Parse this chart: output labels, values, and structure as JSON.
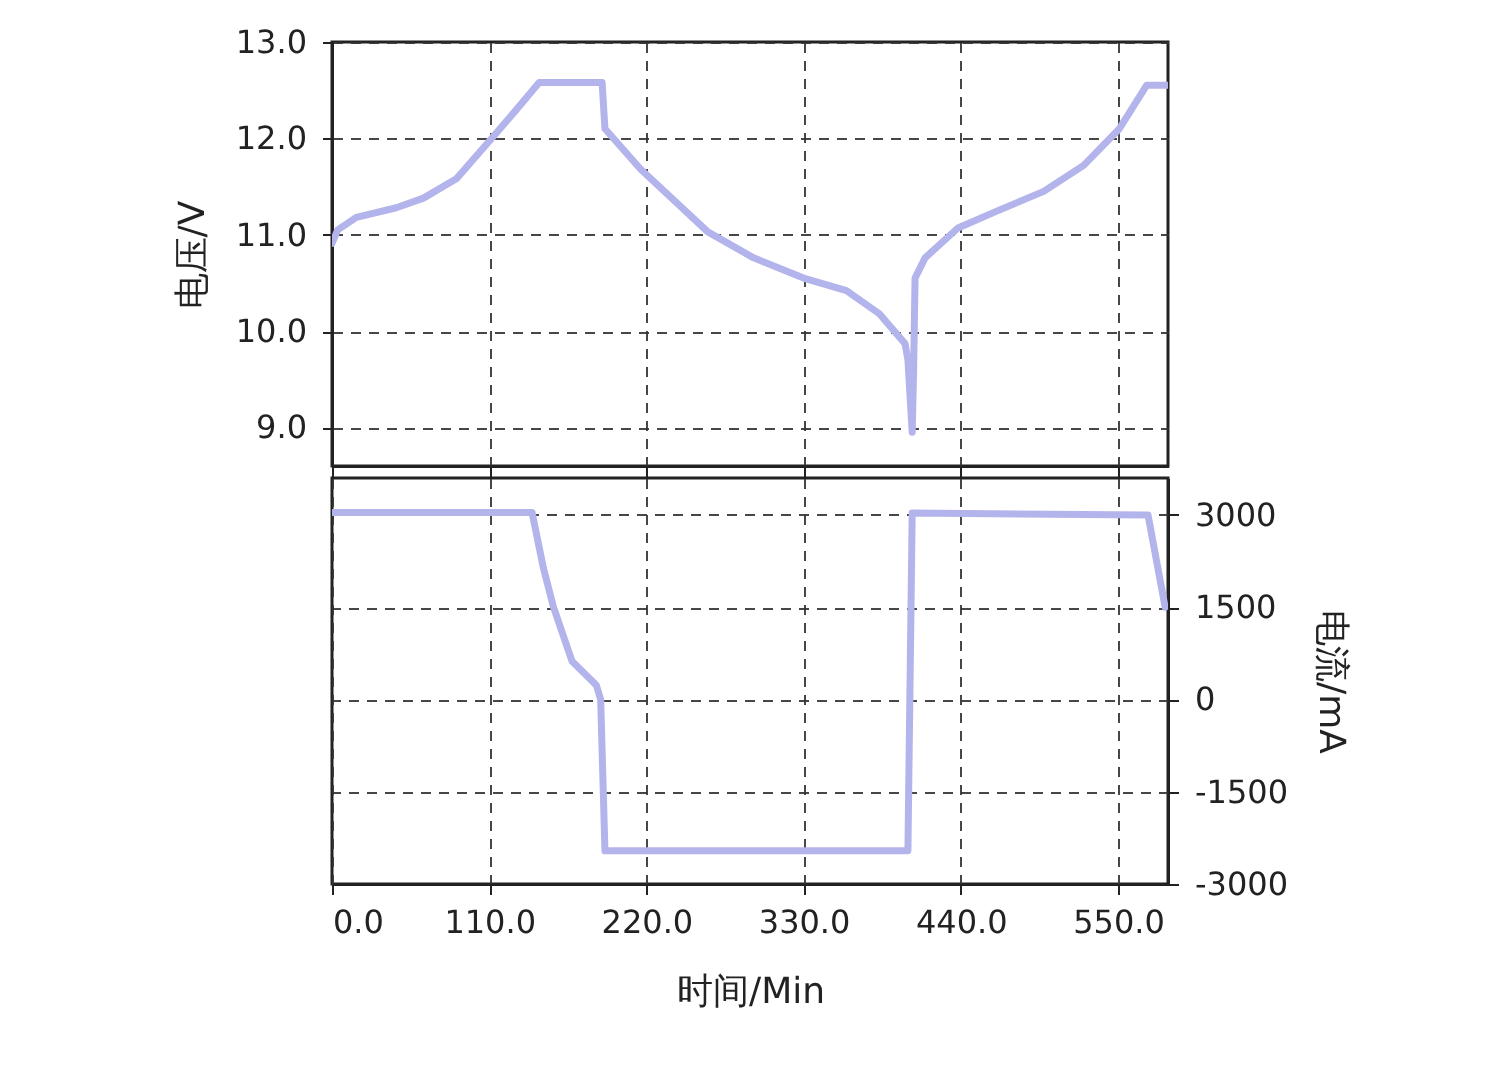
{
  "chart_data": [
    {
      "type": "line",
      "ylabel": "电压/V",
      "x": [
        0,
        4,
        17,
        45,
        64,
        87,
        110,
        128,
        145,
        189,
        191,
        216,
        263,
        295,
        330,
        360,
        383,
        401,
        403,
        406,
        407,
        408,
        415,
        438,
        466,
        498,
        526,
        551,
        570,
        585
      ],
      "series": [
        {
          "color": "#b4b4ec",
          "values": [
            10.91,
            11.05,
            11.18,
            11.28,
            11.38,
            11.58,
            11.97,
            12.28,
            12.58,
            12.58,
            12.1,
            11.68,
            11.03,
            10.76,
            10.55,
            10.42,
            10.18,
            9.87,
            9.7,
            8.95,
            9.6,
            10.55,
            10.76,
            11.07,
            11.25,
            11.45,
            11.72,
            12.1,
            12.55,
            12.55
          ]
        }
      ],
      "xlim": [
        0,
        585
      ],
      "xticks": [
        {
          "value": 0,
          "label": null
        },
        {
          "value": 110,
          "label": null
        },
        {
          "value": 220,
          "label": null
        },
        {
          "value": 330,
          "label": null
        },
        {
          "value": 440,
          "label": null
        },
        {
          "value": 550,
          "label": null
        }
      ],
      "ylim": [
        8.6,
        13.0
      ],
      "yticks": [
        {
          "value": 9,
          "label": "9.0"
        },
        {
          "value": 10,
          "label": "10.0"
        },
        {
          "value": 11,
          "label": "11.0"
        },
        {
          "value": 12,
          "label": "12.0"
        },
        {
          "value": 13,
          "label": "13.0"
        }
      ],
      "grid": true,
      "tick_labels": "y"
    },
    {
      "type": "line",
      "xlabel": "时间/Min",
      "y2label": "电流/mA",
      "x": [
        0,
        140,
        148,
        155,
        168,
        185,
        188,
        191,
        403,
        406,
        571,
        583
      ],
      "series": [
        {
          "color": "#b4b4ec",
          "axis": "y2",
          "values": [
            3040,
            3040,
            2130,
            1500,
            620,
            230,
            0,
            -2460,
            -2460,
            3030,
            3000,
            1500
          ]
        }
      ],
      "xlim": [
        0,
        585
      ],
      "xticks": [
        {
          "value": 0,
          "label": "0.0"
        },
        {
          "value": 110,
          "label": "110.0"
        },
        {
          "value": 220,
          "label": "220.0"
        },
        {
          "value": 330,
          "label": "330.0"
        },
        {
          "value": 440,
          "label": "440.0"
        },
        {
          "value": 550,
          "label": "550.0"
        }
      ],
      "y2lim": [
        -3000,
        3600
      ],
      "y2ticks": [
        -3000,
        -1500,
        0,
        1500,
        3000
      ],
      "grid": true
    }
  ]
}
